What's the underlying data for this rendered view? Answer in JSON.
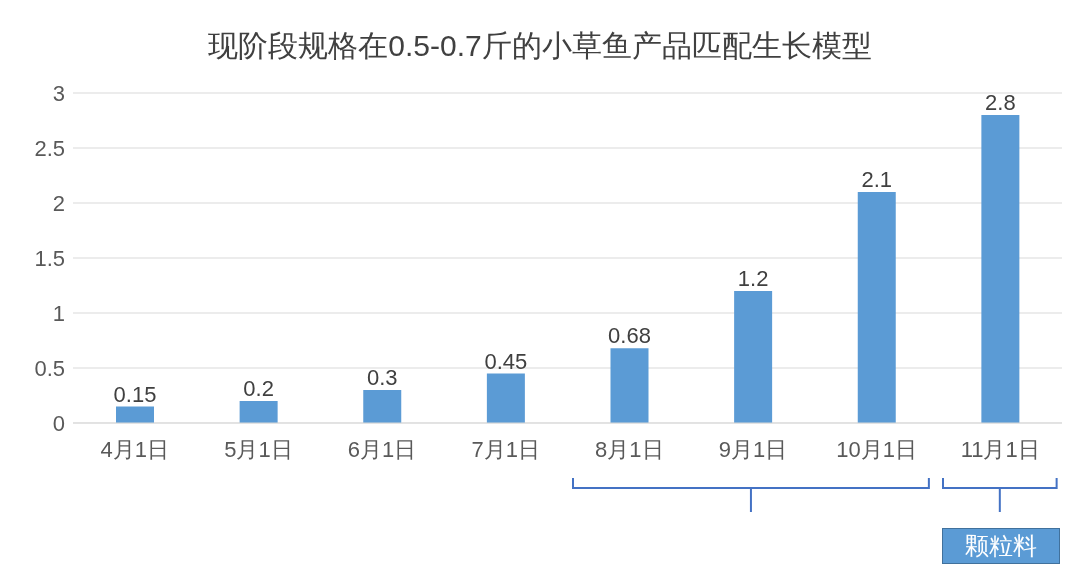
{
  "chart_data": {
    "type": "bar",
    "title": "现阶段规格在0.5-0.7斤的小草鱼产品匹配生长模型",
    "categories": [
      "4月1日",
      "5月1日",
      "6月1日",
      "7月1日",
      "8月1日",
      "9月1日",
      "10月1日",
      "11月1日"
    ],
    "values": [
      0.15,
      0.2,
      0.3,
      0.45,
      0.68,
      1.2,
      2.1,
      2.8
    ],
    "color": "#5b9bd5",
    "ylim": [
      0,
      3
    ],
    "yticks": [
      0,
      0.5,
      1,
      1.5,
      2,
      2.5,
      3
    ],
    "grid": "y",
    "data_labels": true,
    "annotations": [
      "颗粒料"
    ]
  }
}
